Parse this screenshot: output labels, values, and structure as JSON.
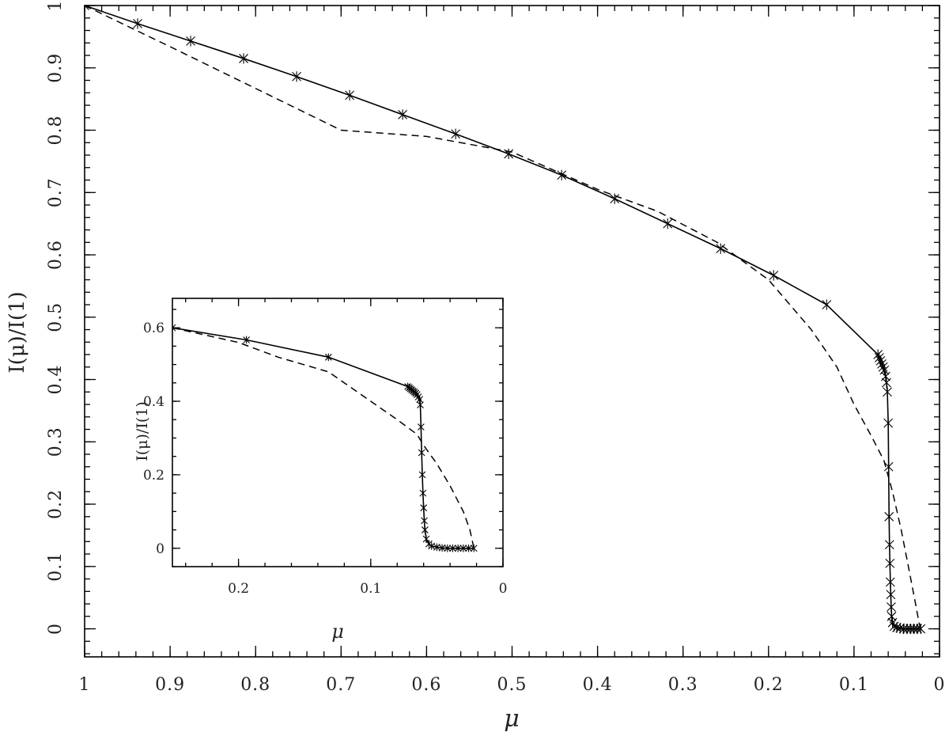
{
  "chart_data": [
    {
      "id": "main",
      "type": "line",
      "xlabel": "μ",
      "ylabel": "I(μ)/I(1)",
      "xlim": [
        1,
        0
      ],
      "ylim": [
        -0.045,
        1
      ],
      "x_reversed": true,
      "x_ticks": [
        1,
        0.9,
        0.8,
        0.7,
        0.6,
        0.5,
        0.4,
        0.3,
        0.2,
        0.1,
        0
      ],
      "x_tick_labels": [
        "1",
        "0.9",
        "0.8",
        "0.7",
        "0.6",
        "0.5",
        "0.4",
        "0.3",
        "0.2",
        "0.1",
        "0"
      ],
      "y_ticks": [
        0,
        0.1,
        0.2,
        0.3,
        0.4,
        0.5,
        0.6,
        0.7,
        0.8,
        0.9,
        1
      ],
      "y_tick_labels": [
        "0",
        "0.1",
        "0.2",
        "0.3",
        "0.4",
        "0.5",
        "0.6",
        "0.7",
        "0.8",
        "0.9",
        "1"
      ],
      "grid": false,
      "legend": "none",
      "series": [
        {
          "style": "solid",
          "marker": "star",
          "x": [
            1.0,
            0.938,
            0.876,
            0.814,
            0.752,
            0.69,
            0.628,
            0.566,
            0.504,
            0.442,
            0.38,
            0.318,
            0.256,
            0.194,
            0.132,
            0.072,
            0.0705,
            0.069,
            0.0675,
            0.066,
            0.0645,
            0.063,
            0.062,
            0.061,
            0.06,
            0.0595,
            0.059,
            0.0585,
            0.058,
            0.0575,
            0.057,
            0.0565,
            0.056,
            0.055,
            0.053,
            0.05,
            0.046,
            0.042,
            0.038,
            0.034,
            0.03,
            0.026,
            0.022
          ],
          "y": [
            1.0,
            0.971,
            0.943,
            0.915,
            0.886,
            0.856,
            0.825,
            0.794,
            0.762,
            0.728,
            0.69,
            0.65,
            0.61,
            0.567,
            0.52,
            0.44,
            0.435,
            0.43,
            0.425,
            0.42,
            0.415,
            0.405,
            0.395,
            0.38,
            0.33,
            0.26,
            0.18,
            0.135,
            0.105,
            0.075,
            0.055,
            0.035,
            0.02,
            0.01,
            0.004,
            0.002,
            0.001,
            0.0,
            0.0,
            0.0,
            0.0,
            0.0,
            0.0
          ]
        },
        {
          "style": "dashed",
          "marker": "none",
          "x": [
            1.0,
            0.9,
            0.8,
            0.7,
            0.6,
            0.5,
            0.4,
            0.33,
            0.26,
            0.2,
            0.15,
            0.12,
            0.1,
            0.08,
            0.065,
            0.055,
            0.045,
            0.035,
            0.028,
            0.024,
            0.022
          ],
          "y": [
            1.0,
            0.934,
            0.867,
            0.8,
            0.79,
            0.765,
            0.705,
            0.67,
            0.62,
            0.56,
            0.48,
            0.42,
            0.36,
            0.31,
            0.27,
            0.22,
            0.16,
            0.09,
            0.04,
            0.01,
            0.0
          ]
        }
      ]
    },
    {
      "id": "inset",
      "type": "line",
      "xlabel": "μ",
      "ylabel": "I(μ)/I(1)",
      "xlim": [
        0.25,
        0
      ],
      "ylim": [
        -0.05,
        0.68
      ],
      "x_reversed": true,
      "x_ticks": [
        0.2,
        0.1,
        0
      ],
      "x_tick_labels": [
        "0.2",
        "0.1",
        "0"
      ],
      "y_ticks": [
        0,
        0.2,
        0.4,
        0.6
      ],
      "y_tick_labels": [
        "0",
        "0.2",
        "0.4",
        "0.6"
      ],
      "grid": false,
      "legend": "none",
      "series": [
        {
          "style": "solid",
          "marker": "star",
          "x": [
            0.25,
            0.194,
            0.132,
            0.072,
            0.071,
            0.07,
            0.069,
            0.068,
            0.067,
            0.066,
            0.065,
            0.064,
            0.063,
            0.0625,
            0.062,
            0.0615,
            0.061,
            0.0605,
            0.06,
            0.0595,
            0.059,
            0.058,
            0.056,
            0.054,
            0.05,
            0.046,
            0.042,
            0.038,
            0.034,
            0.03,
            0.026,
            0.022
          ],
          "y": [
            0.6,
            0.567,
            0.52,
            0.44,
            0.437,
            0.434,
            0.431,
            0.428,
            0.425,
            0.422,
            0.418,
            0.412,
            0.405,
            0.39,
            0.33,
            0.26,
            0.2,
            0.15,
            0.11,
            0.075,
            0.05,
            0.025,
            0.012,
            0.006,
            0.003,
            0.001,
            0.0,
            0.0,
            0.0,
            0.0,
            0.0,
            0.0
          ]
        },
        {
          "style": "dashed",
          "marker": "none",
          "x": [
            0.25,
            0.2,
            0.17,
            0.132,
            0.1,
            0.08,
            0.065,
            0.06,
            0.05,
            0.04,
            0.03,
            0.025,
            0.022
          ],
          "y": [
            0.6,
            0.56,
            0.52,
            0.48,
            0.4,
            0.35,
            0.31,
            0.28,
            0.23,
            0.17,
            0.1,
            0.05,
            0.0
          ]
        }
      ]
    }
  ]
}
